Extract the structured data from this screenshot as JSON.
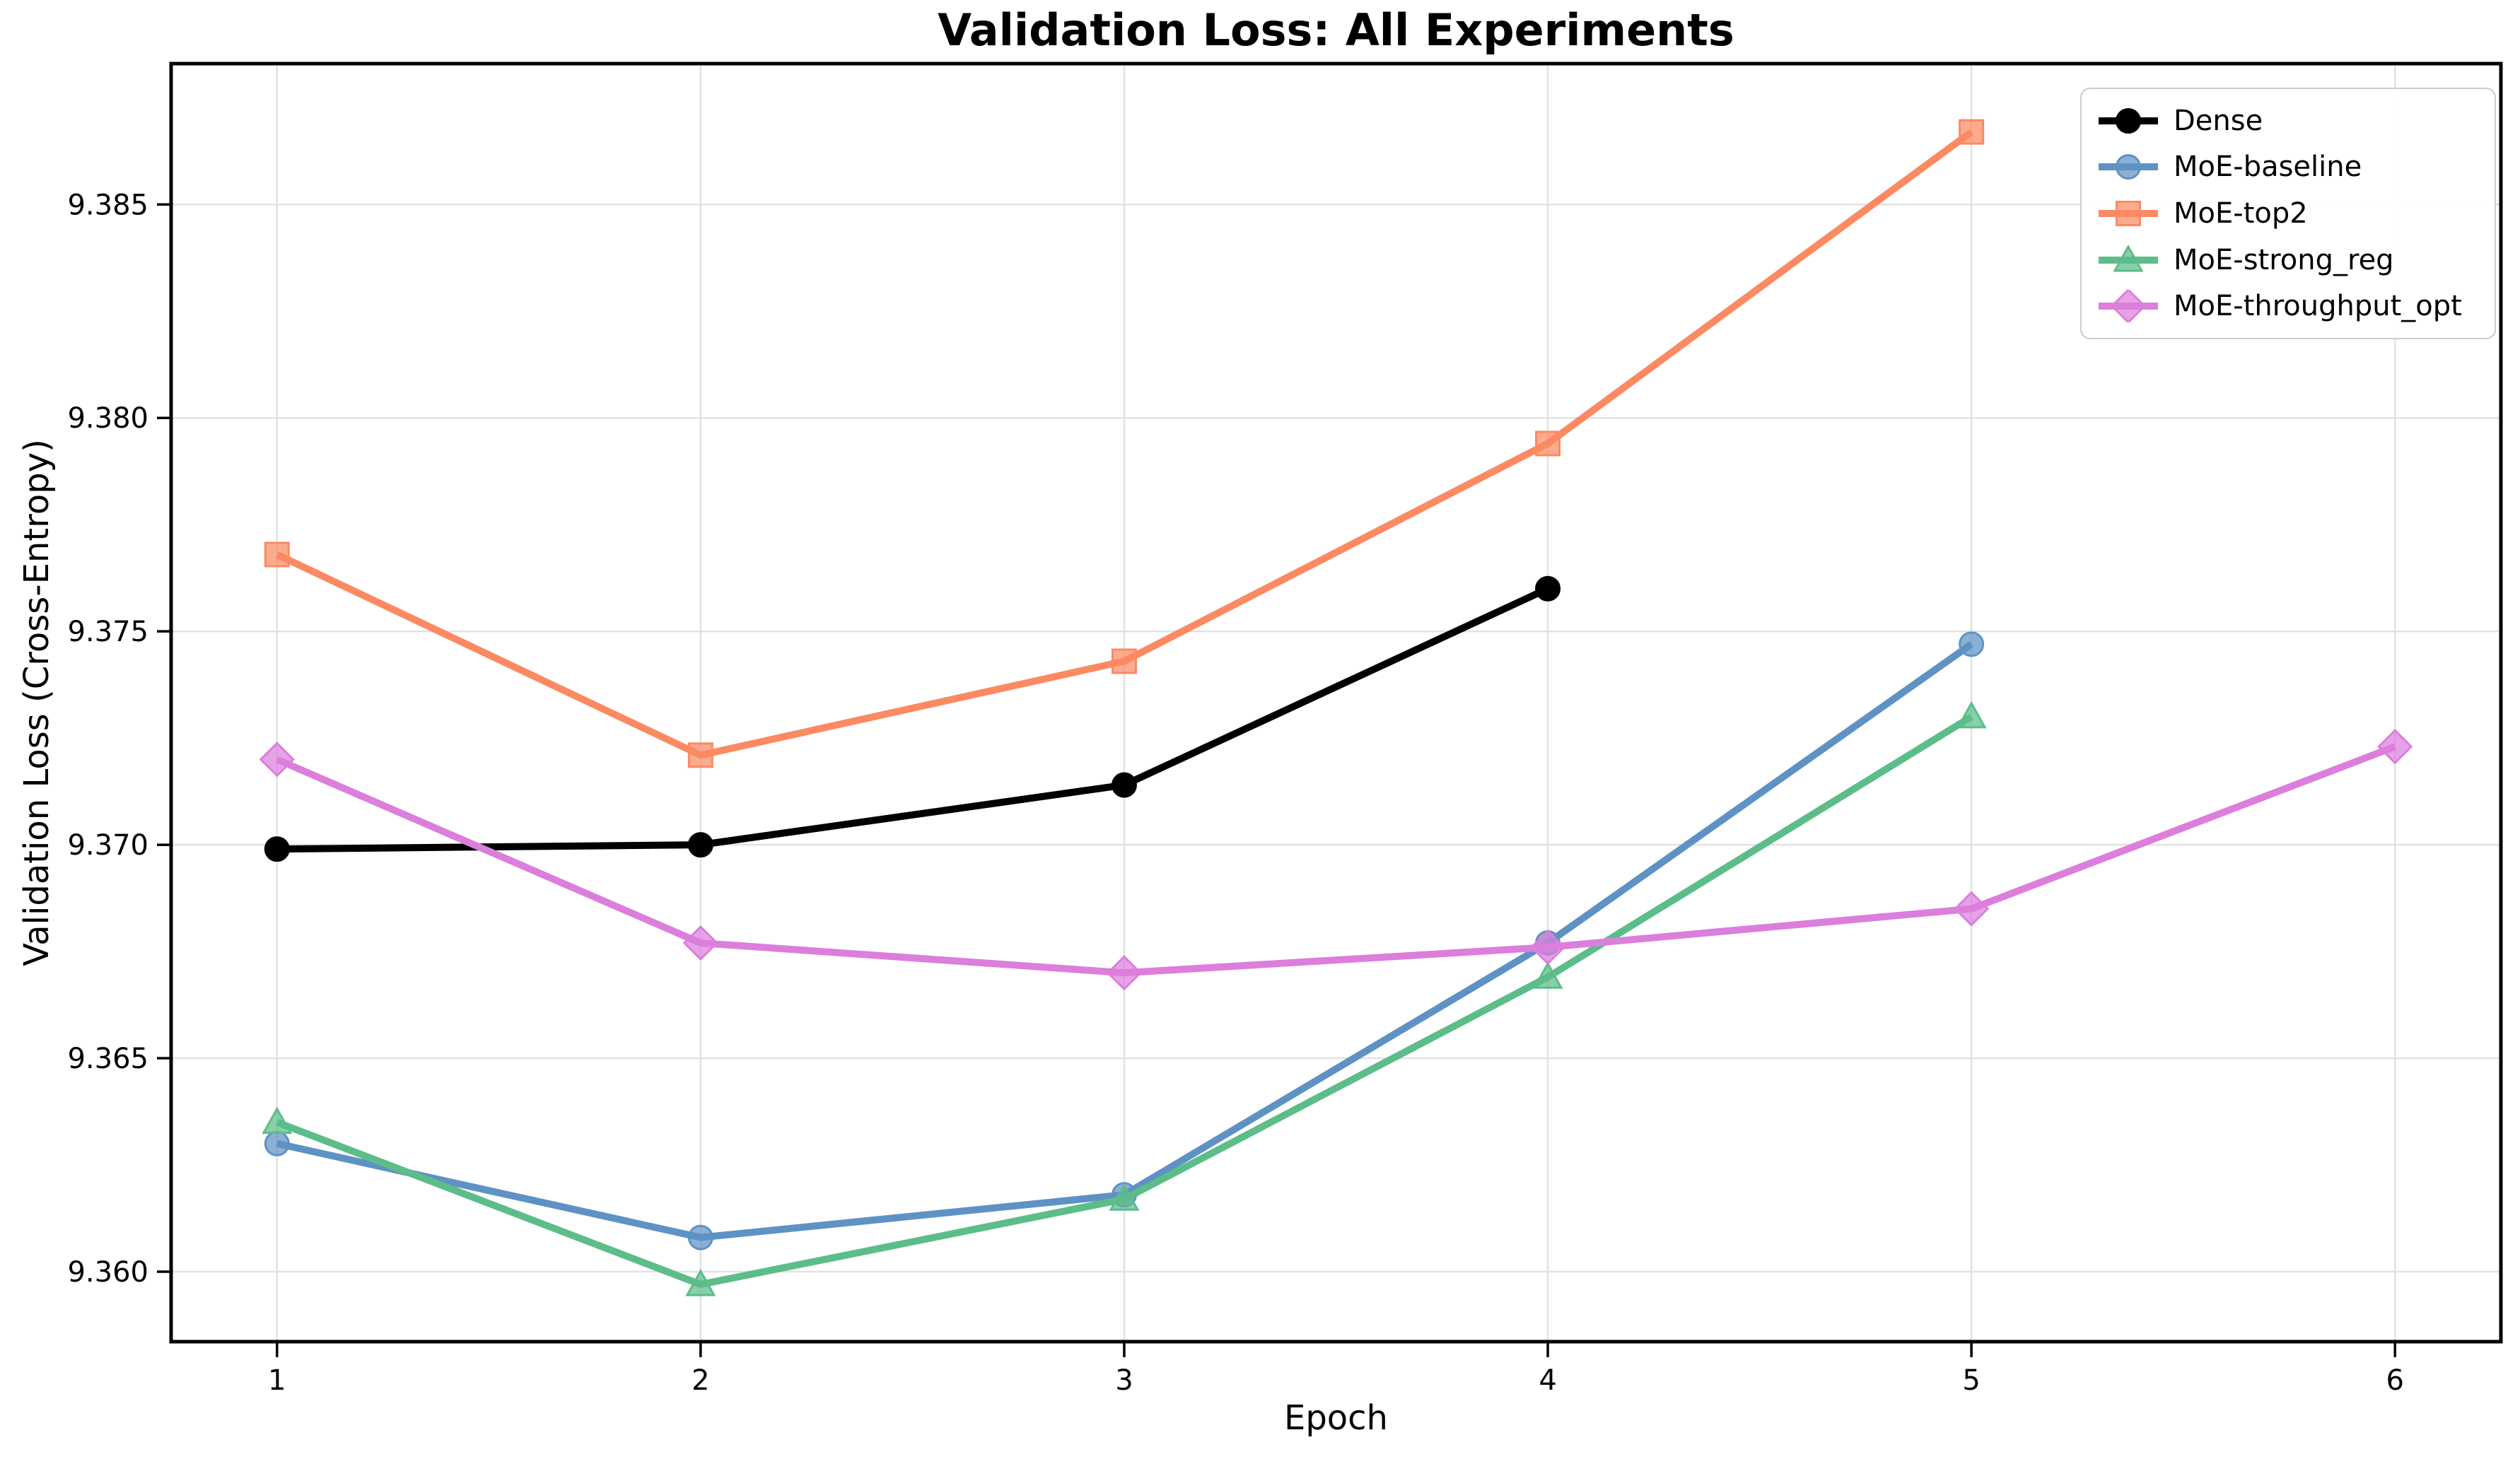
{
  "chart_data": {
    "type": "line",
    "title": "Validation Loss: All Experiments",
    "xlabel": "Epoch",
    "ylabel": "Validation Loss (Cross-Entropy)",
    "xlim": [
      0.75,
      6.25
    ],
    "ylim": [
      9.35836,
      9.3883
    ],
    "xticks": [
      1,
      2,
      3,
      4,
      5,
      6
    ],
    "yticks": [
      9.36,
      9.365,
      9.37,
      9.375,
      9.38,
      9.385
    ],
    "ytick_decimals": 3,
    "grid": true,
    "grid_color": "#e2e2e2",
    "spine_color": "#000000",
    "legend_position": "upper right",
    "series": [
      {
        "name": "Dense",
        "color": "#000000",
        "marker": "circle",
        "x": [
          1,
          2,
          3,
          4
        ],
        "y": [
          9.3699,
          9.37,
          9.3714,
          9.376
        ]
      },
      {
        "name": "MoE-baseline",
        "color": "#5E92C4",
        "marker": "circle",
        "x": [
          1,
          2,
          3,
          4,
          5
        ],
        "y": [
          9.363,
          9.3608,
          9.3618,
          9.3677,
          9.3747
        ]
      },
      {
        "name": "MoE-top2",
        "color": "#FB8A63",
        "marker": "square",
        "x": [
          1,
          2,
          3,
          4,
          5
        ],
        "y": [
          9.3768,
          9.3721,
          9.3743,
          9.3794,
          9.3867
        ]
      },
      {
        "name": "MoE-strong_reg",
        "color": "#5CBD89",
        "marker": "triangle",
        "x": [
          1,
          2,
          3,
          4,
          5
        ],
        "y": [
          9.3635,
          9.3597,
          9.3617,
          9.3669,
          9.373
        ]
      },
      {
        "name": "MoE-throughput_opt",
        "color": "#DC7EDC",
        "marker": "diamond",
        "x": [
          1,
          2,
          3,
          4,
          5,
          6
        ],
        "y": [
          9.372,
          9.3677,
          9.367,
          9.3676,
          9.3685,
          9.3723
        ]
      }
    ]
  }
}
